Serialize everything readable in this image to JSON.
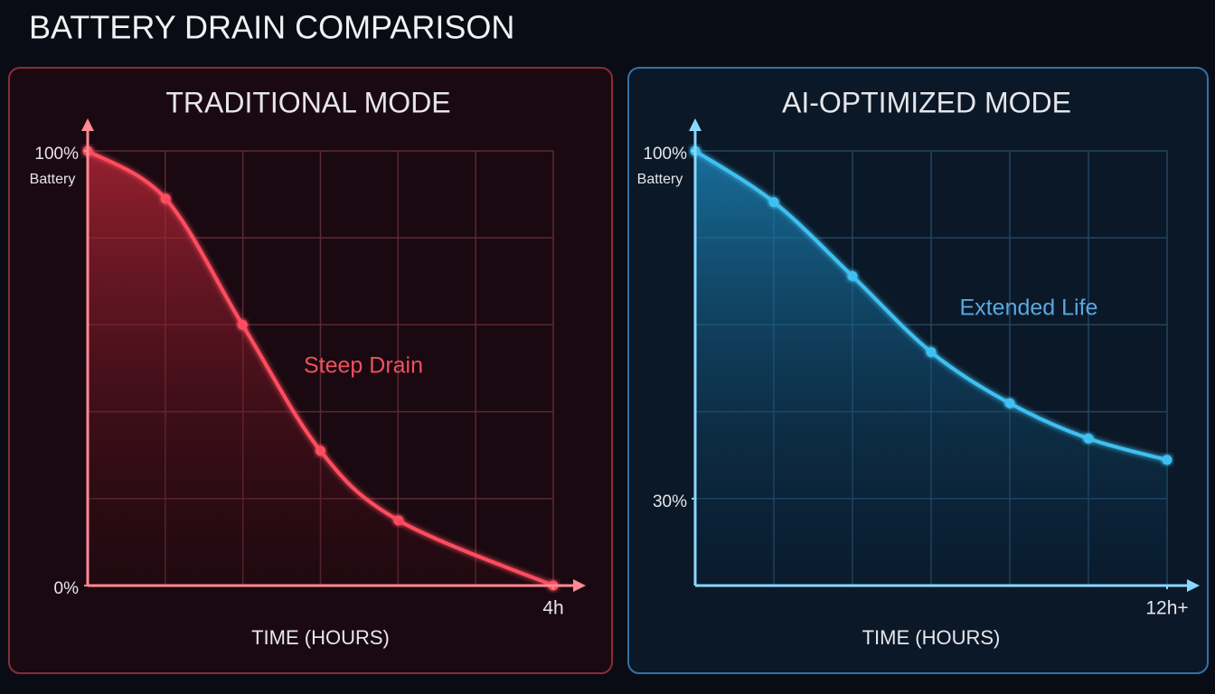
{
  "title": "BATTERY DRAIN COMPARISON",
  "chart_data": [
    {
      "type": "line",
      "title": "TRADITIONAL MODE",
      "xlabel": "TIME (HOURS)",
      "ylabel": "Battery",
      "x": [
        0,
        0.67,
        1.33,
        2,
        2.67,
        4
      ],
      "series": [
        {
          "color": "#ff4d5e",
          "values": [
            100,
            89,
            60,
            31,
            15,
            0
          ]
        }
      ],
      "xlim": [
        0,
        4
      ],
      "xticks": [
        {
          "value": 4,
          "label": "4h"
        }
      ],
      "ylim": [
        0,
        100
      ],
      "yticks": [
        {
          "value": 100,
          "label": "100%"
        },
        {
          "value": 0,
          "label": "0%"
        }
      ],
      "grid": true,
      "annotation": "Steep Drain"
    },
    {
      "type": "line",
      "title": "AI-OPTIMIZED MODE",
      "xlabel": "TIME (HOURS)",
      "ylabel": "Battery",
      "x": [
        0,
        2,
        4,
        6,
        8,
        10,
        12
      ],
      "series": [
        {
          "color": "#3fc0f0",
          "values": [
            100,
            89.7,
            74.8,
            59.5,
            49.2,
            42.1,
            37.8
          ]
        }
      ],
      "xlim": [
        0,
        12
      ],
      "xticks": [
        {
          "value": 12,
          "label": "12h+"
        }
      ],
      "ylim": [
        12.5,
        100
      ],
      "yticks": [
        {
          "value": 100,
          "label": "100%"
        },
        {
          "value": 30,
          "label": "30%"
        }
      ],
      "grid": true,
      "annotation": "Extended Life"
    }
  ]
}
